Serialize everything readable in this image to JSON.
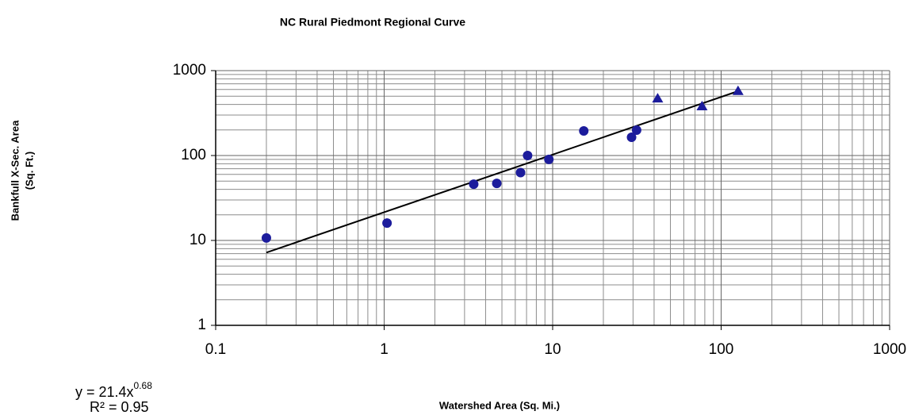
{
  "chart_data": {
    "type": "scatter",
    "title": "NC Rural Piedmont Regional Curve",
    "xlabel": "Watershed Area (Sq. Mi.)",
    "ylabel": [
      "Bankfull X-Sec. Area",
      "(Sq. Ft.)"
    ],
    "equation": {
      "base": "y = 21.4x",
      "exponent": "0.68",
      "r2": "R² = 0.95"
    },
    "xscale": "log",
    "yscale": "log",
    "grid": true,
    "xlim": [
      0.1,
      1000
    ],
    "ylim": [
      1,
      1000
    ],
    "xticks": [
      0.1,
      1,
      10,
      100,
      1000
    ],
    "yticks": [
      1,
      10,
      100,
      1000
    ],
    "series": [
      {
        "marker": "circle",
        "color": "#1c1c9c",
        "x": [
          0.2,
          1.04,
          3.4,
          4.66,
          6.45,
          7.1,
          9.5,
          15.3,
          29.4,
          31.5
        ],
        "values": [
          10.7,
          16,
          46,
          47,
          63,
          100,
          90,
          195,
          164,
          199
        ]
      },
      {
        "marker": "triangle",
        "color": "#1c1c9c",
        "x": [
          42,
          77,
          126
        ],
        "values": [
          470,
          380,
          575
        ]
      }
    ],
    "trendline": {
      "color": "#000000",
      "x": [
        0.2,
        125
      ],
      "values": [
        7.2,
        570
      ]
    }
  }
}
